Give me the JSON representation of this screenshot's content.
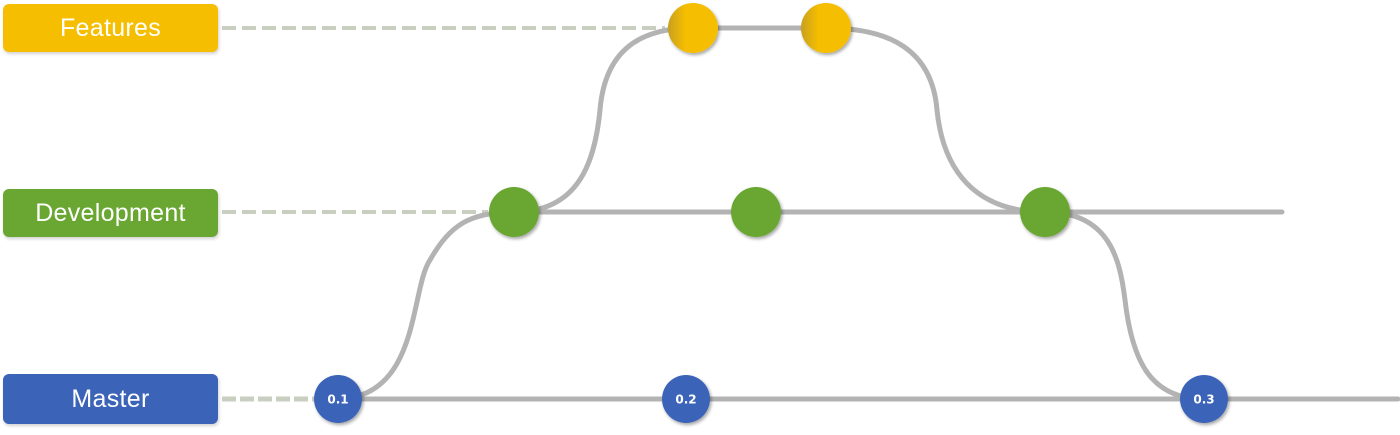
{
  "branches": [
    {
      "id": "features",
      "label": "Features",
      "color": "#F5BE00"
    },
    {
      "id": "development",
      "label": "Development",
      "color": "#6AA632"
    },
    {
      "id": "master",
      "label": "Master",
      "color": "#3B63B8"
    }
  ],
  "line_color": "#B3B3B3",
  "dash_color": "#C8CFC0",
  "commits": {
    "features": [
      {
        "label": ""
      },
      {
        "label": ""
      }
    ],
    "development": [
      {
        "label": ""
      },
      {
        "label": ""
      },
      {
        "label": ""
      }
    ],
    "master": [
      {
        "label": "0.1"
      },
      {
        "label": "0.2"
      },
      {
        "label": "0.3"
      }
    ]
  }
}
